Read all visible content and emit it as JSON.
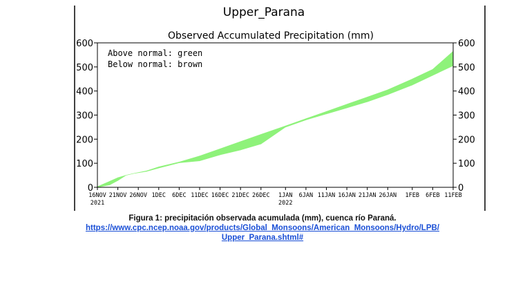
{
  "chart_data": {
    "type": "area",
    "title": "Upper_Parana",
    "subtitle": "Observed Accumulated Precipitation (mm)",
    "annotations": [
      "Above normal: green",
      "Below normal: brown"
    ],
    "ylim": [
      0,
      600
    ],
    "yticks": [
      "0",
      "100",
      "200",
      "300",
      "400",
      "500",
      "600"
    ],
    "xlim": [
      0,
      87
    ],
    "xticks": [
      {
        "x": 0,
        "label": "16NOV",
        "year": "2021"
      },
      {
        "x": 5,
        "label": "21NOV",
        "year": ""
      },
      {
        "x": 10,
        "label": "26NOV",
        "year": ""
      },
      {
        "x": 15,
        "label": "1DEC",
        "year": ""
      },
      {
        "x": 20,
        "label": "6DEC",
        "year": ""
      },
      {
        "x": 25,
        "label": "11DEC",
        "year": ""
      },
      {
        "x": 30,
        "label": "16DEC",
        "year": ""
      },
      {
        "x": 35,
        "label": "21DEC",
        "year": ""
      },
      {
        "x": 40,
        "label": "26DEC",
        "year": ""
      },
      {
        "x": 46,
        "label": "1JAN",
        "year": "2022"
      },
      {
        "x": 51,
        "label": "6JAN",
        "year": ""
      },
      {
        "x": 56,
        "label": "11JAN",
        "year": ""
      },
      {
        "x": 61,
        "label": "16JAN",
        "year": ""
      },
      {
        "x": 66,
        "label": "21JAN",
        "year": ""
      },
      {
        "x": 71,
        "label": "26JAN",
        "year": ""
      },
      {
        "x": 77,
        "label": "1FEB",
        "year": ""
      },
      {
        "x": 82,
        "label": "6FEB",
        "year": ""
      },
      {
        "x": 87,
        "label": "11FEB",
        "year": ""
      }
    ],
    "series": [
      {
        "values": [
          [
            0,
            3
          ],
          [
            3,
            25
          ],
          [
            5,
            40
          ],
          [
            7,
            50
          ],
          [
            9,
            58
          ],
          [
            12,
            68
          ],
          [
            15,
            85
          ],
          [
            20,
            105
          ],
          [
            25,
            130
          ],
          [
            30,
            160
          ],
          [
            35,
            190
          ],
          [
            40,
            220
          ],
          [
            46,
            255
          ],
          [
            51,
            285
          ],
          [
            56,
            315
          ],
          [
            61,
            345
          ],
          [
            66,
            375
          ],
          [
            71,
            405
          ],
          [
            77,
            450
          ],
          [
            82,
            490
          ],
          [
            87,
            565
          ]
        ]
      },
      {
        "values": [
          [
            0,
            0
          ],
          [
            3,
            10
          ],
          [
            5,
            28
          ],
          [
            7,
            50
          ],
          [
            9,
            58
          ],
          [
            12,
            66
          ],
          [
            15,
            80
          ],
          [
            20,
            102
          ],
          [
            25,
            110
          ],
          [
            30,
            135
          ],
          [
            35,
            155
          ],
          [
            40,
            180
          ],
          [
            46,
            250
          ],
          [
            51,
            280
          ],
          [
            56,
            305
          ],
          [
            61,
            330
          ],
          [
            66,
            355
          ],
          [
            71,
            385
          ],
          [
            77,
            425
          ],
          [
            82,
            465
          ],
          [
            87,
            505
          ]
        ]
      }
    ],
    "colors": {
      "above": "#8ef27a",
      "below": "#c49a90",
      "axis": "#000000"
    }
  },
  "caption": {
    "title": "Figura 1: precipitación observada acumulada (mm), cuenca río Paraná.",
    "link_line1": "https://www.cpc.ncep.noaa.gov/products/Global_Monsoons/American_Monsoons/Hydro/LPB/",
    "link_line2": "Upper_Parana.shtml#"
  }
}
